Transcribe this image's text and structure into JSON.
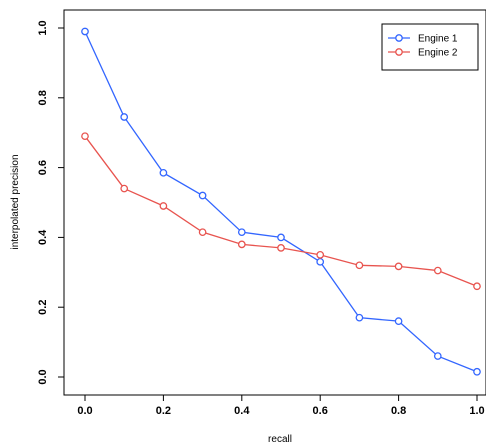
{
  "chart_data": {
    "type": "line",
    "xlabel": "recall",
    "ylabel": "interpolated precision",
    "xlim": [
      0,
      1
    ],
    "ylim": [
      0,
      1
    ],
    "x_ticks": [
      "0.0",
      "0.2",
      "0.4",
      "0.6",
      "0.8",
      "1.0"
    ],
    "y_ticks": [
      "0.0",
      "0.2",
      "0.4",
      "0.6",
      "0.8",
      "1.0"
    ],
    "grid": false,
    "legend_position": "top-right",
    "x": [
      0.0,
      0.1,
      0.2,
      0.3,
      0.4,
      0.5,
      0.6,
      0.7,
      0.8,
      0.9,
      1.0
    ],
    "series": [
      {
        "name": "Engine 1",
        "color": "#3366ff",
        "values": [
          0.99,
          0.745,
          0.585,
          0.52,
          0.415,
          0.4,
          0.33,
          0.17,
          0.16,
          0.06,
          0.015
        ]
      },
      {
        "name": "Engine 2",
        "color": "#e8544f",
        "values": [
          0.69,
          0.54,
          0.49,
          0.415,
          0.38,
          0.37,
          0.35,
          0.32,
          0.317,
          0.305,
          0.26
        ]
      }
    ]
  }
}
